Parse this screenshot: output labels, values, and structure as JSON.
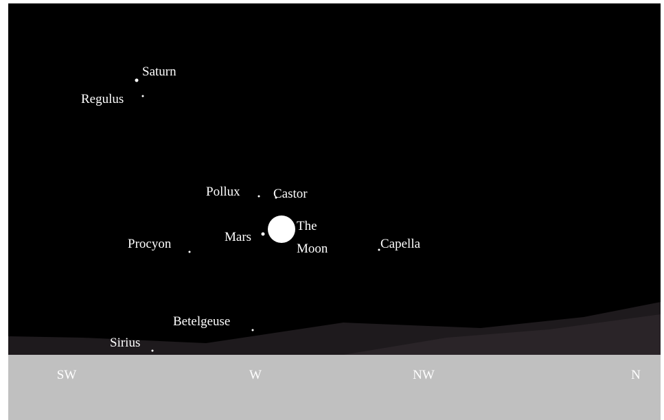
{
  "objects": [
    {
      "label": "Saturn"
    },
    {
      "label": "Regulus"
    },
    {
      "label": "Pollux"
    },
    {
      "label": "Castor"
    },
    {
      "label": "Mars"
    },
    {
      "label": "The Moon"
    },
    {
      "label": "Procyon"
    },
    {
      "label": "Capella"
    },
    {
      "label": "Betelgeuse"
    },
    {
      "label": "Sirius"
    }
  ],
  "directions": [
    "SW",
    "W",
    "NW",
    "N"
  ]
}
